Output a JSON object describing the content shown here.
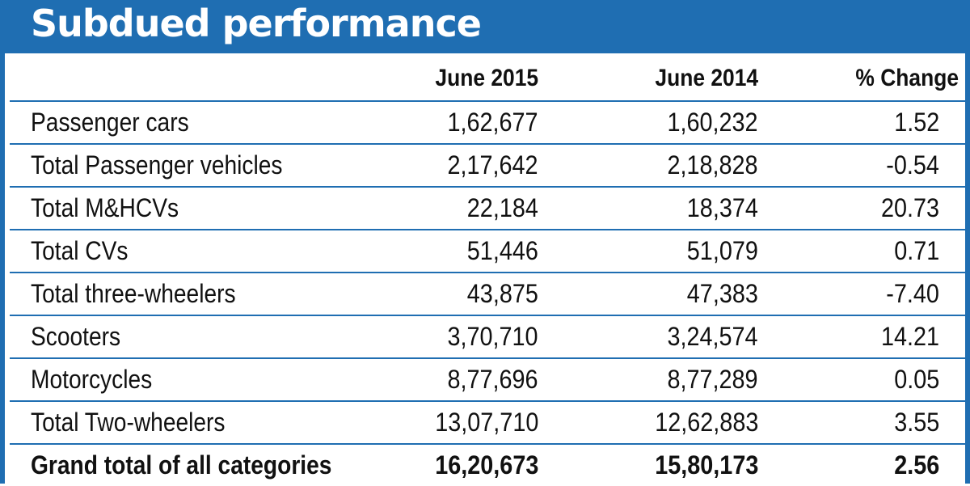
{
  "title": "Subdued performance",
  "colors": {
    "accent": "#1f6eb2",
    "text": "#111111",
    "background": "#ffffff"
  },
  "chart_data": {
    "type": "table",
    "title": "Subdued performance",
    "columns": [
      "June 2015",
      "June 2014",
      "% Change"
    ],
    "rows": [
      {
        "category": "Passenger cars",
        "june_2015": "1,62,677",
        "june_2014": "1,60,232",
        "pct_change": "1.52"
      },
      {
        "category": "Total Passenger vehicles",
        "june_2015": "2,17,642",
        "june_2014": "2,18,828",
        "pct_change": "-0.54"
      },
      {
        "category": "Total M&HCVs",
        "june_2015": "22,184",
        "june_2014": "18,374",
        "pct_change": "20.73"
      },
      {
        "category": "Total CVs",
        "june_2015": "51,446",
        "june_2014": "51,079",
        "pct_change": "0.71"
      },
      {
        "category": "Total three-wheelers",
        "june_2015": "43,875",
        "june_2014": "47,383",
        "pct_change": "-7.40"
      },
      {
        "category": "Scooters",
        "june_2015": "3,70,710",
        "june_2014": "3,24,574",
        "pct_change": "14.21"
      },
      {
        "category": "Motorcycles",
        "june_2015": "8,77,696",
        "june_2014": "8,77,289",
        "pct_change": "0.05"
      },
      {
        "category": "Total Two-wheelers",
        "june_2015": "13,07,710",
        "june_2014": "12,62,883",
        "pct_change": "3.55"
      },
      {
        "category": "Grand total of all categories",
        "june_2015": "16,20,673",
        "june_2014": "15,80,173",
        "pct_change": "2.56",
        "is_total": true
      }
    ]
  }
}
